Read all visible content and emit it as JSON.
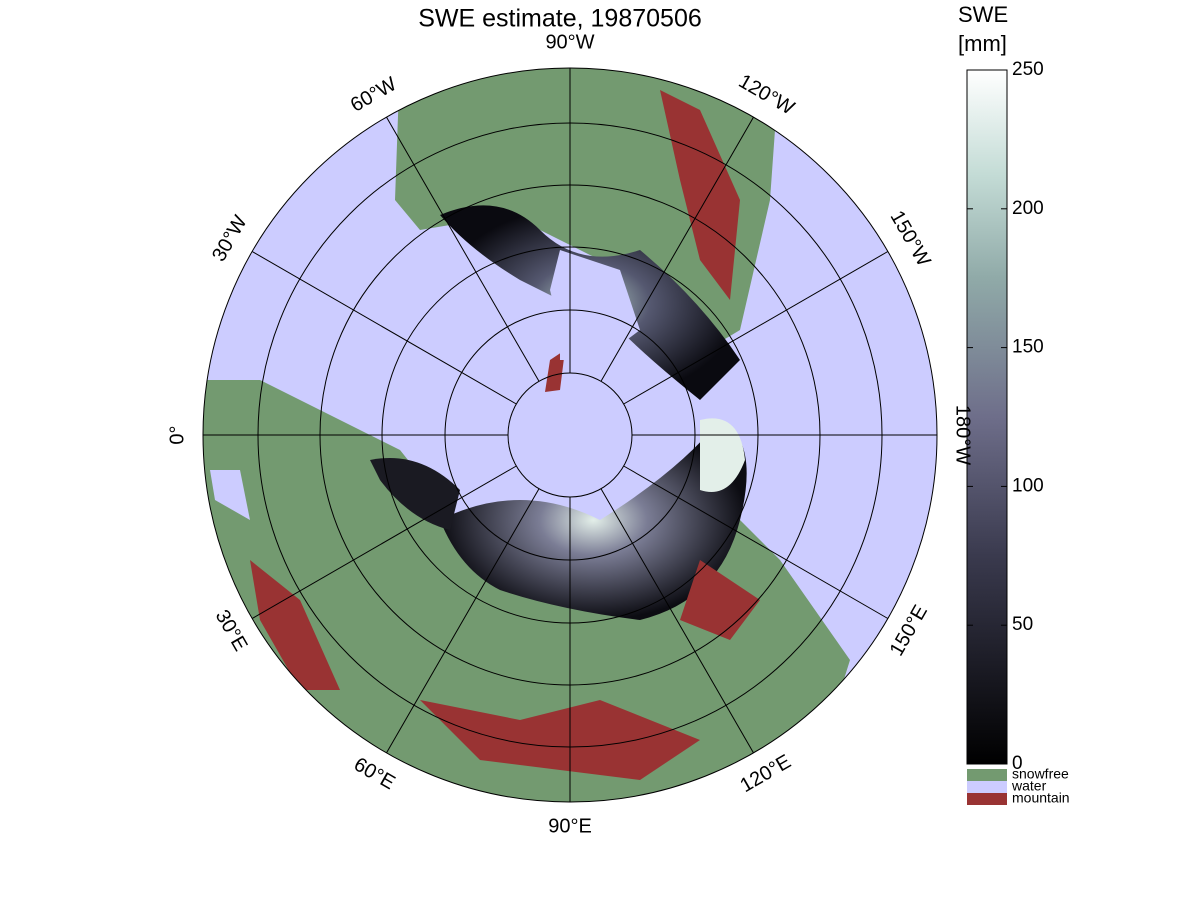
{
  "map": {
    "title": "SWE estimate, 19870506",
    "meridian_labels": [
      "0°",
      "30°E",
      "60°E",
      "90°E",
      "120°E",
      "150°E",
      "180°W",
      "150°W",
      "120°W",
      "90°W",
      "60°W",
      "30°W"
    ],
    "colorbar": {
      "title": [
        "SWE",
        "[mm]"
      ],
      "lim": [
        0,
        250
      ],
      "ticks": [
        0,
        50,
        100,
        150,
        200,
        250
      ],
      "categories": [
        {
          "name": "snowfree",
          "color": "#739a70"
        },
        {
          "name": "water",
          "color": "#ccccff"
        },
        {
          "name": "mountain",
          "color": "#993333"
        }
      ]
    }
  }
}
